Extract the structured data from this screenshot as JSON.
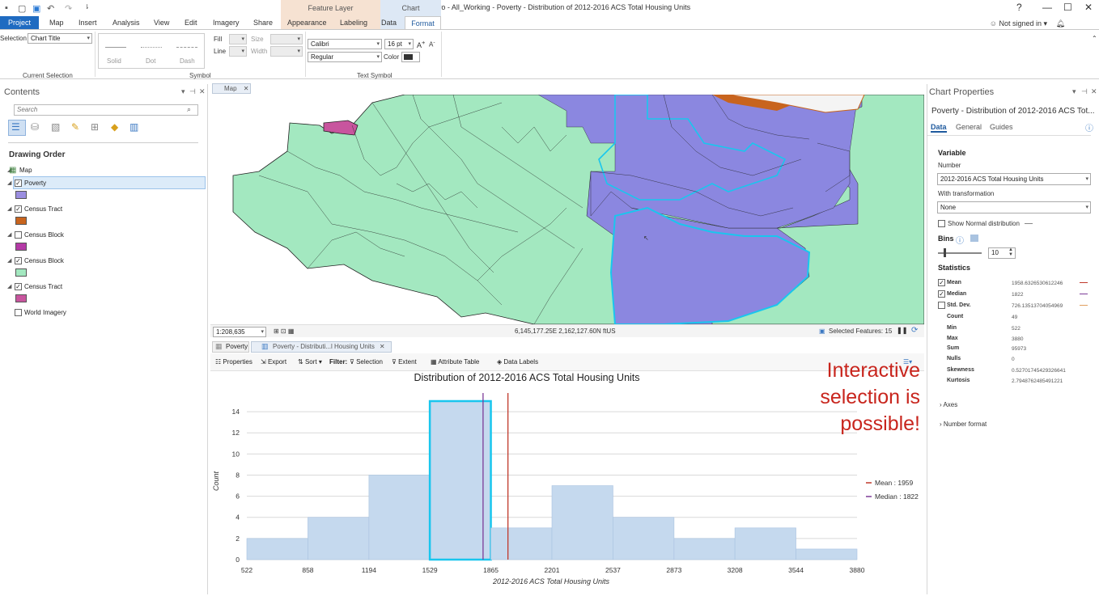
{
  "titlebar": {
    "title": "ArcGIS Pro - All_Working - Poverty - Distribution of 2012-2016 ACS Total Housing Units",
    "help": "?",
    "minimize": "—",
    "maximize": "☐",
    "close": "✕"
  },
  "context": {
    "feature_layer": "Feature Layer",
    "chart": "Chart"
  },
  "tabs": [
    "Project",
    "Map",
    "Insert",
    "Analysis",
    "View",
    "Edit",
    "Imagery",
    "Share",
    "Appearance",
    "Labeling",
    "Data",
    "Format"
  ],
  "account": {
    "signed_in": "Not signed in ▾"
  },
  "ribbon": {
    "selection_label": "Selection",
    "selection_value": "Chart Title",
    "current_selection": "Current Selection",
    "line_styles": [
      "Solid",
      "Dot",
      "Dash"
    ],
    "fill": "Fill",
    "line": "Line",
    "size": "Size",
    "width": "Width",
    "symbol": "Symbol",
    "font": "Calibri",
    "font_size": "16 pt",
    "font_style": "Regular",
    "color": "Color",
    "text_symbol": "Text Symbol"
  },
  "contents": {
    "title": "Contents",
    "search_placeholder": "Search",
    "drawing_order": "Drawing Order",
    "map": "Map",
    "layers": [
      {
        "name": "Poverty",
        "checked": true,
        "color": "#9b8ee0"
      },
      {
        "name": "Census Tract",
        "checked": true,
        "color": "#c8641e"
      },
      {
        "name": "Census Block",
        "checked": false,
        "color": "#b43aa6"
      },
      {
        "name": "Census Block",
        "checked": true,
        "color": "#a3e8c0"
      },
      {
        "name": "Census Tract",
        "checked": true,
        "color": "#c8559e"
      },
      {
        "name": "World Imagery",
        "checked": false,
        "color": ""
      }
    ]
  },
  "map": {
    "tab": "Map",
    "scale": "1:208,635",
    "coords": "6,145,177.25E 2,162,127.60N ftUS",
    "selected": "Selected Features: 15"
  },
  "chart_tabs": {
    "poverty": "Poverty",
    "chart": "Poverty - Distributi...l Housing Units"
  },
  "toolbar": {
    "properties": "Properties",
    "export": "Export",
    "sort": "Sort",
    "filter": "Filter:",
    "selection": "Selection",
    "extent": "Extent",
    "attribute_table": "Attribute Table",
    "data_labels": "Data Labels"
  },
  "annotation": {
    "line1": "Interactive",
    "line2": "selection is",
    "line3": "possible!"
  },
  "chart_data": {
    "type": "bar",
    "title": "Distribution of 2012-2016 ACS Total Housing Units",
    "xlabel": "2012-2016 ACS Total Housing Units",
    "ylabel": "Count",
    "bin_edges": [
      522,
      858,
      1194,
      1529,
      1865,
      2201,
      2537,
      2873,
      3208,
      3544,
      3880
    ],
    "x_tick_labels": [
      "522",
      "858",
      "1194",
      "1529",
      "1865",
      "2201",
      "2537",
      "2873",
      "3208",
      "3544",
      "3880"
    ],
    "values": [
      2,
      4,
      8,
      15,
      3,
      7,
      4,
      2,
      3,
      1
    ],
    "selected_bin": 3,
    "ylim": [
      0,
      15
    ],
    "y_ticks": [
      0,
      2,
      4,
      6,
      8,
      10,
      12,
      14
    ],
    "mean": 1959,
    "median": 1822,
    "legend": [
      {
        "label": "Mean : 1959",
        "color": "#c0392b"
      },
      {
        "label": "Median : 1822",
        "color": "#7d3c98"
      }
    ],
    "bar_color": "#c5d9ee",
    "bar_edge": "#a9c3e0",
    "selected_edge": "#19c6ee"
  },
  "props": {
    "title": "Chart Properties",
    "subtitle": "Poverty - Distribution of 2012-2016 ACS Tot...",
    "tabs": [
      "Data",
      "General",
      "Guides"
    ],
    "variable": "Variable",
    "number": "Number",
    "number_value": "2012-2016 ACS Total Housing Units",
    "with_transformation": "With transformation",
    "transformation_value": "None",
    "show_normal": "Show Normal distribution",
    "bins": "Bins",
    "bins_value": "10",
    "statistics": "Statistics",
    "stats": [
      {
        "name": "Mean",
        "value": "1958.6326530612246",
        "checked": true
      },
      {
        "name": "Median",
        "value": "1822",
        "checked": true
      },
      {
        "name": "Std. Dev.",
        "value": "726.13513704054969",
        "checked": false
      },
      {
        "name": "Count",
        "value": "49"
      },
      {
        "name": "Min",
        "value": "522"
      },
      {
        "name": "Max",
        "value": "3880"
      },
      {
        "name": "Sum",
        "value": "95973"
      },
      {
        "name": "Nulls",
        "value": "0"
      },
      {
        "name": "Skewness",
        "value": "0.52701745429326641"
      },
      {
        "name": "Kurtosis",
        "value": "2.7948762485491221"
      }
    ],
    "axes": "Axes",
    "number_format": "Number format"
  }
}
